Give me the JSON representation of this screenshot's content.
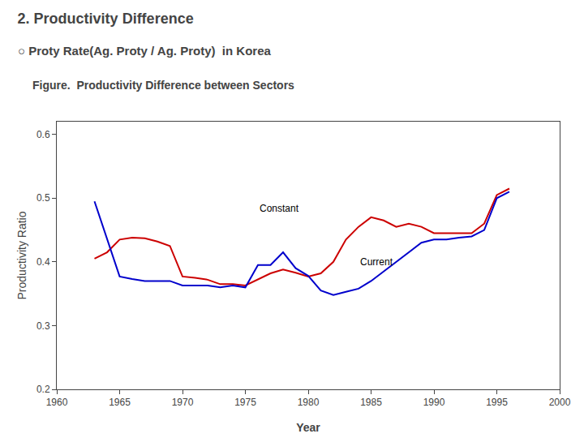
{
  "chart_data": {
    "type": "line",
    "title": "2. Productivity Difference",
    "subtitle": "○ Proty Rate(Ag. Proty / Ag. Proty)  in Korea",
    "caption": "Figure.  Productivity Difference between Sectors",
    "x_label": "Year",
    "y_label": "Productivity Ratio",
    "x": [
      1963,
      1964,
      1965,
      1966,
      1967,
      1968,
      1969,
      1970,
      1971,
      1972,
      1973,
      1974,
      1975,
      1976,
      1977,
      1978,
      1979,
      1980,
      1981,
      1982,
      1983,
      1984,
      1985,
      1986,
      1987,
      1988,
      1989,
      1990,
      1991,
      1992,
      1993,
      1994,
      1995,
      1996
    ],
    "series": [
      {
        "name": "Constant",
        "color": "#cc0000",
        "values": [
          0.405,
          0.415,
          0.435,
          0.438,
          0.437,
          0.432,
          0.425,
          0.377,
          0.375,
          0.372,
          0.365,
          0.365,
          0.363,
          0.372,
          0.382,
          0.388,
          0.383,
          0.377,
          0.382,
          0.4,
          0.435,
          0.455,
          0.47,
          0.465,
          0.455,
          0.46,
          0.455,
          0.445,
          0.445,
          0.445,
          0.445,
          0.46,
          0.505,
          0.515
        ]
      },
      {
        "name": "Current",
        "color": "#0000cc",
        "values": [
          0.495,
          0.435,
          0.377,
          0.373,
          0.37,
          0.37,
          0.37,
          0.363,
          0.363,
          0.363,
          0.36,
          0.363,
          0.36,
          0.395,
          0.395,
          0.415,
          0.39,
          0.378,
          0.355,
          0.348,
          0.353,
          0.358,
          0.37,
          0.385,
          0.4,
          0.415,
          0.43,
          0.435,
          0.435,
          0.438,
          0.44,
          0.45,
          0.5,
          0.51
        ]
      }
    ],
    "annotations": [
      {
        "text": "Constant",
        "x": 1976,
        "y": 0.472
      },
      {
        "text": "Current",
        "x": 1984,
        "y": 0.388
      }
    ],
    "xlim": [
      1960,
      2000
    ],
    "xticks": [
      1960,
      1965,
      1970,
      1975,
      1980,
      1985,
      1990,
      1995,
      2000
    ],
    "ylim": [
      0.2,
      0.62
    ],
    "yticks": [
      0.2,
      0.3,
      0.4,
      0.5,
      0.6
    ],
    "grid": false
  }
}
